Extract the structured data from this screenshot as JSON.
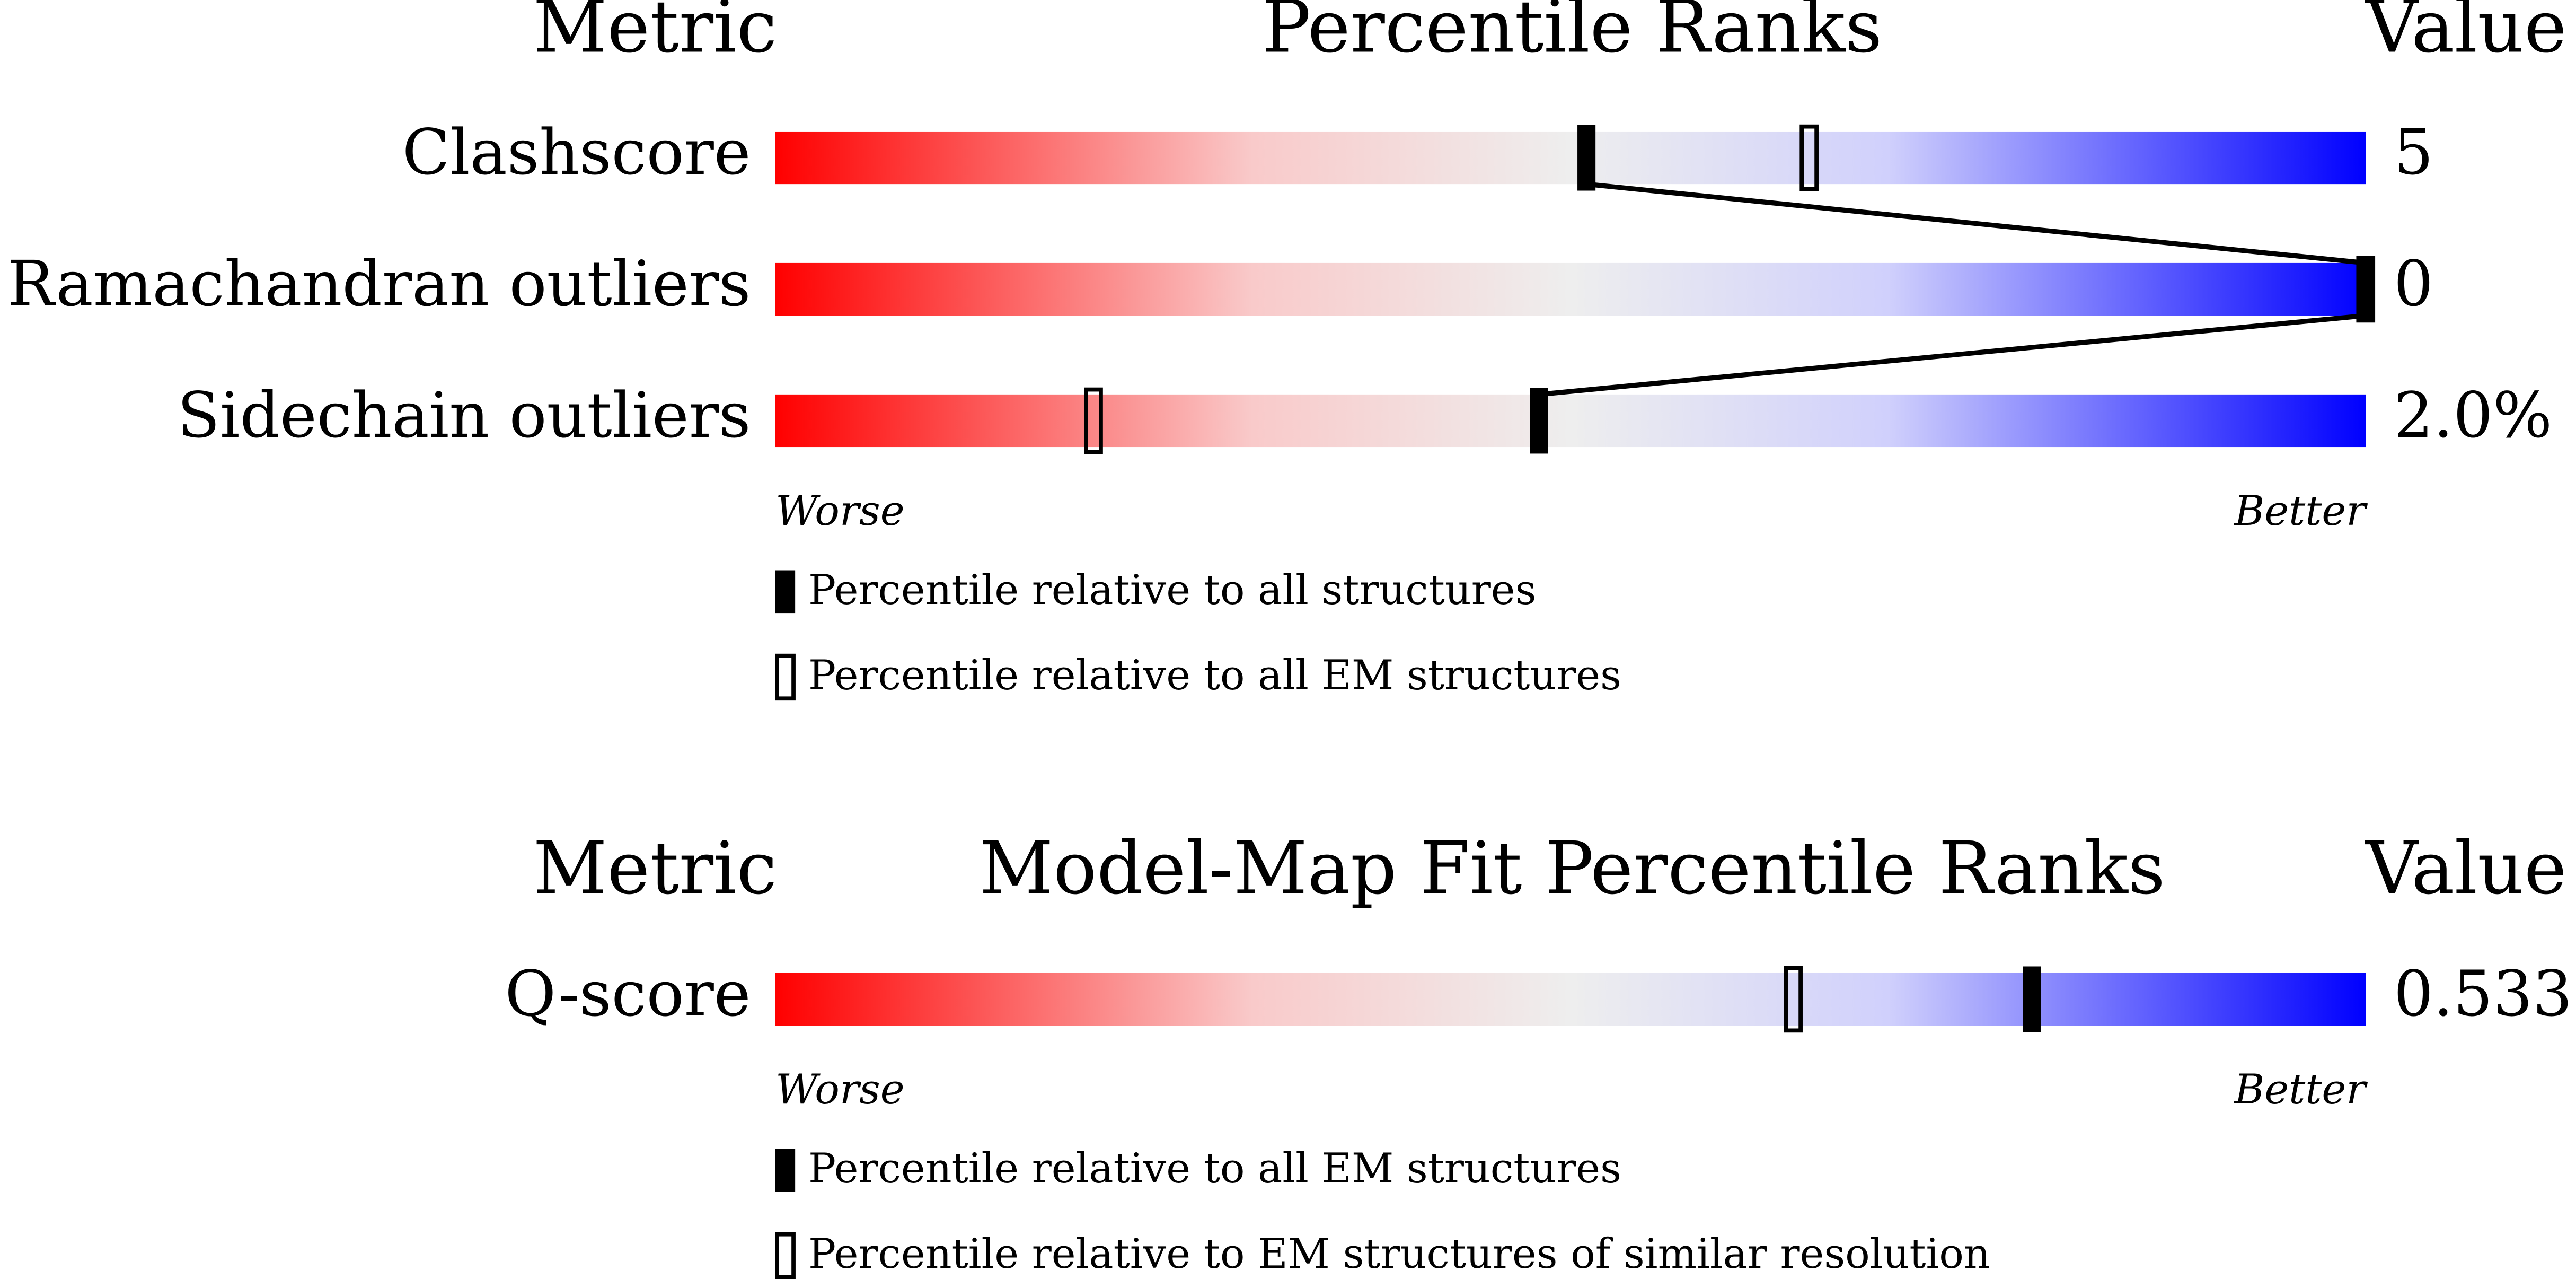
{
  "chart_data": [
    {
      "type": "percentile-slider",
      "metric_header": "Metric",
      "title": "Percentile Ranks",
      "value_header": "Value",
      "categories": [
        "Clashscore",
        "Ramachandran outliers",
        "Sidechain outliers"
      ],
      "metric_values": [
        "5",
        "0",
        "2.0%"
      ],
      "xlim": [
        0,
        100
      ],
      "low_label": "Worse",
      "high_label": "Better",
      "series": [
        {
          "name": "Percentile relative to all structures",
          "color": "#000000",
          "filled": true,
          "values": [
            51,
            100,
            48
          ]
        },
        {
          "name": "Percentile relative to all EM structures",
          "color": "#000000",
          "filled": false,
          "values": [
            65,
            100,
            20
          ]
        }
      ]
    },
    {
      "type": "percentile-slider",
      "metric_header": "Metric",
      "title": "Model-Map Fit Percentile Ranks",
      "value_header": "Value",
      "categories": [
        "Q-score"
      ],
      "metric_values": [
        "0.533"
      ],
      "xlim": [
        0,
        100
      ],
      "low_label": "Worse",
      "high_label": "Better",
      "series": [
        {
          "name": "Percentile relative to all EM structures",
          "color": "#000000",
          "filled": true,
          "values": [
            79
          ]
        },
        {
          "name": "Percentile relative to EM structures of similar resolution",
          "color": "#000000",
          "filled": false,
          "values": [
            64
          ]
        }
      ]
    }
  ]
}
